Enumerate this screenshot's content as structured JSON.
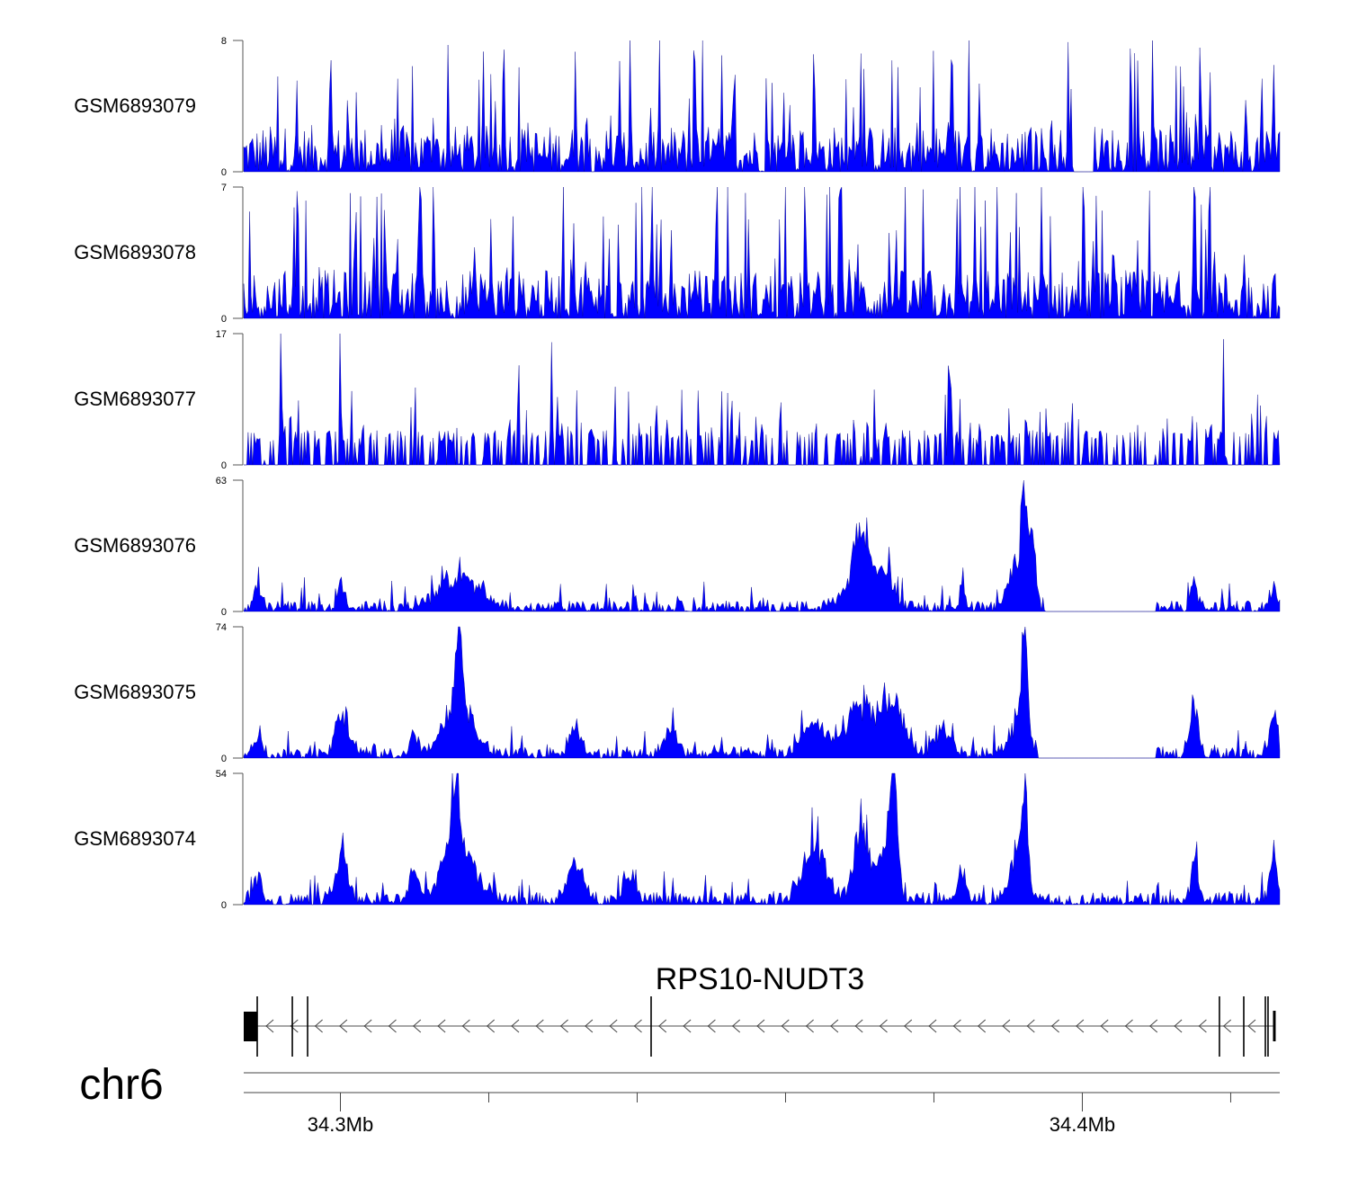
{
  "chart_data": {
    "type": "area",
    "chromosome": "chr6",
    "xlim_mb": [
      34.28697,
      34.42661
    ],
    "x_ticks_mb": [
      34.3,
      34.32,
      34.34,
      34.36,
      34.38,
      34.4,
      34.42
    ],
    "x_tick_labels": [
      {
        "mb": 34.3,
        "label": "34.3Mb"
      },
      {
        "mb": 34.4,
        "label": "34.4Mb"
      }
    ],
    "fill_color": "#0000ff",
    "tracks": [
      {
        "name": "GSM6893079",
        "ylim": [
          0,
          8
        ],
        "ymin_label": "0",
        "ymax_label": "8",
        "baseline": 2.2,
        "spike_rate": 0.12,
        "spike_max": 7,
        "peaks": [
          [
            34.3317,
            8,
            0.1
          ],
          [
            34.36382,
            8,
            0.1
          ],
          [
            34.42576,
            7,
            0.1
          ],
          [
            34.29867,
            7,
            0.1
          ]
        ],
        "gaps": [
          [
            34.399,
            34.4015
          ]
        ]
      },
      {
        "name": "GSM6893078",
        "ylim": [
          0,
          7
        ],
        "ymin_label": "0",
        "ymax_label": "7",
        "baseline": 2.0,
        "spike_rate": 0.14,
        "spike_max": 7,
        "peaks": [
          [
            34.306,
            7,
            0.1
          ],
          [
            34.33,
            7,
            0.1
          ],
          [
            34.342,
            7,
            0.1
          ],
          [
            34.415,
            7,
            0.1
          ]
        ],
        "gaps": []
      },
      {
        "name": "GSM6893077",
        "ylim": [
          0,
          17
        ],
        "ymin_label": "0",
        "ymax_label": "17",
        "baseline": 0,
        "spike_rate": 0.18,
        "spike_max": 6,
        "peaks": [
          [
            34.3,
            17,
            0.1
          ],
          [
            34.324,
            17,
            0.1
          ],
          [
            34.3285,
            17,
            0.1
          ],
          [
            34.382,
            17,
            0.1
          ],
          [
            34.419,
            17,
            0.1
          ],
          [
            34.337,
            11,
            0.1
          ],
          [
            34.372,
            11,
            0.1
          ],
          [
            34.292,
            11,
            0.1
          ]
        ],
        "gaps": []
      },
      {
        "name": "GSM6893076",
        "ylim": [
          0,
          63
        ],
        "ymin_label": "0",
        "ymax_label": "63",
        "baseline": 4,
        "spike_rate": 0.1,
        "spike_max": 12,
        "peaks": [
          [
            34.31594,
            20,
            2.5
          ],
          [
            34.37024,
            30,
            1.0
          ],
          [
            34.37351,
            22,
            1.0
          ],
          [
            34.37024,
            16,
            2
          ],
          [
            34.39218,
            63,
            0.4
          ],
          [
            34.3933,
            50,
            0.4
          ],
          [
            34.391,
            25,
            1.0
          ],
          [
            34.30018,
            14,
            0.5
          ],
          [
            34.41509,
            18,
            0.4
          ],
          [
            34.42576,
            16,
            0.4
          ],
          [
            34.28891,
            14,
            0.5
          ],
          [
            34.38382,
            18,
            0.3
          ]
        ],
        "gaps": [
          [
            34.395,
            34.41
          ]
        ]
      },
      {
        "name": "GSM6893075",
        "ylim": [
          0,
          74
        ],
        "ymin_label": "0",
        "ymax_label": "74",
        "baseline": 5,
        "spike_rate": 0.1,
        "spike_max": 12,
        "peaks": [
          [
            34.31594,
            38,
            2.0
          ],
          [
            34.316,
            60,
            0.4
          ],
          [
            34.30018,
            30,
            0.8
          ],
          [
            34.3317,
            20,
            0.8
          ],
          [
            34.34442,
            18,
            0.8
          ],
          [
            34.36382,
            22,
            1.5
          ],
          [
            34.37024,
            32,
            2.0
          ],
          [
            34.37449,
            36,
            1.5
          ],
          [
            34.38115,
            18,
            1.0
          ],
          [
            34.39218,
            74,
            0.4
          ],
          [
            34.3915,
            25,
            1.2
          ],
          [
            34.28891,
            14,
            0.5
          ],
          [
            34.30988,
            16,
            0.5
          ],
          [
            34.41509,
            35,
            0.5
          ],
          [
            34.42576,
            30,
            0.5
          ]
        ],
        "gaps": [
          [
            34.394,
            34.41
          ]
        ]
      },
      {
        "name": "GSM6893074",
        "ylim": [
          0,
          54
        ],
        "ymin_label": "0",
        "ymax_label": "54",
        "baseline": 4,
        "spike_rate": 0.1,
        "spike_max": 10,
        "peaks": [
          [
            34.31594,
            28,
            2.2
          ],
          [
            34.3155,
            50,
            0.5
          ],
          [
            34.30018,
            26,
            0.8
          ],
          [
            34.3317,
            20,
            1.0
          ],
          [
            34.33897,
            14,
            0.8
          ],
          [
            34.36382,
            28,
            1.5
          ],
          [
            34.37024,
            40,
            1.0
          ],
          [
            34.37449,
            54,
            0.5
          ],
          [
            34.37351,
            25,
            1.2
          ],
          [
            34.38382,
            15,
            0.6
          ],
          [
            34.39218,
            53,
            0.4
          ],
          [
            34.3915,
            22,
            1.2
          ],
          [
            34.28891,
            14,
            0.5
          ],
          [
            34.30988,
            18,
            0.6
          ],
          [
            34.41509,
            22,
            0.4
          ],
          [
            34.42576,
            22,
            0.5
          ]
        ],
        "gaps": []
      }
    ],
    "gene": {
      "name": "RPS10-NUDT3",
      "strand": "-",
      "start_mb": 34.28697,
      "end_mb": 34.42588,
      "utr_block_mb": [
        34.28697,
        34.28879
      ],
      "exons_mb": [
        34.28879,
        34.29352,
        34.29558,
        34.34188,
        34.41848,
        34.42176,
        34.42467,
        34.42503,
        34.42588
      ]
    }
  }
}
